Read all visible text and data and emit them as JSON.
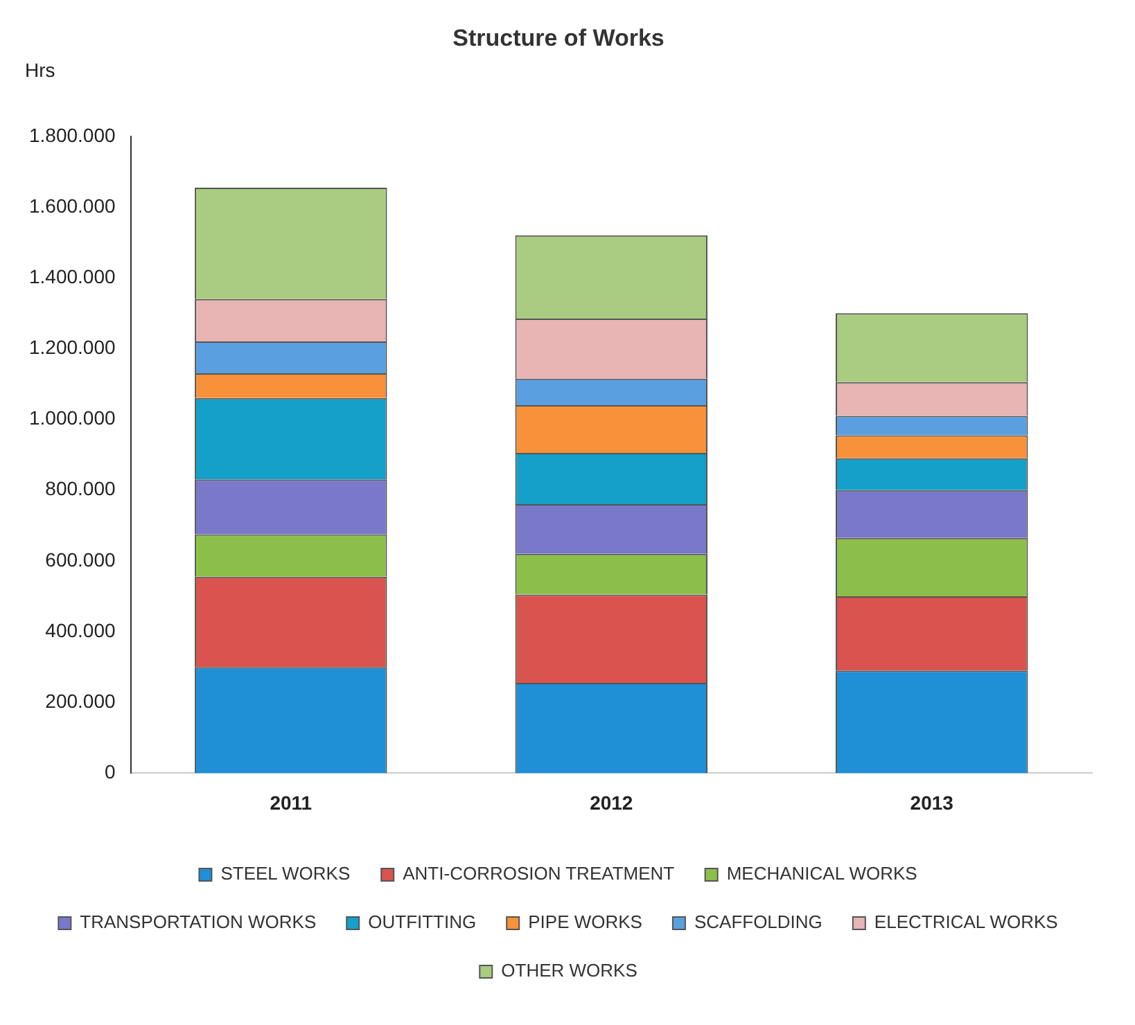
{
  "chart_data": {
    "type": "bar",
    "title": "Structure of Works",
    "ylabel": "Hrs",
    "categories": [
      "2011",
      "2012",
      "2013"
    ],
    "stacked": true,
    "legend": "bottom",
    "grid": false,
    "ylim": [
      0,
      1800000
    ],
    "yticks": [
      0,
      {
        "value": 200000,
        "label": "200.000"
      },
      {
        "value": 400000,
        "label": "400.000"
      },
      {
        "value": 600000,
        "label": "600.000"
      },
      {
        "value": 800000,
        "label": "800.000"
      },
      {
        "value": 1000000,
        "label": "1.000.000"
      },
      {
        "value": 1200000,
        "label": "1.200.000"
      },
      {
        "value": 1400000,
        "label": "1.400.000"
      },
      {
        "value": 1600000,
        "label": "1.600.000"
      },
      {
        "value": 1800000,
        "label": "1.800.000"
      }
    ],
    "series": [
      {
        "name": "STEEL WORKS",
        "color": "#1f8fd6",
        "values": [
          300000,
          255000,
          290000
        ]
      },
      {
        "name": "ANTI-CORROSION TREATMENT",
        "color": "#d9534f",
        "values": [
          255000,
          250000,
          210000
        ]
      },
      {
        "name": "MECHANICAL WORKS",
        "color": "#8cbf4a",
        "values": [
          120000,
          115000,
          165000
        ]
      },
      {
        "name": "TRANSPORTATION WORKS",
        "color": "#7a78c8",
        "values": [
          155000,
          140000,
          135000
        ]
      },
      {
        "name": "OUTFITTING",
        "color": "#14a0c8",
        "values": [
          230000,
          145000,
          90000
        ]
      },
      {
        "name": "PIPE WORKS",
        "color": "#f7913a",
        "values": [
          70000,
          135000,
          65000
        ]
      },
      {
        "name": "SCAFFOLDING",
        "color": "#5aa0e0",
        "values": [
          90000,
          75000,
          55000
        ]
      },
      {
        "name": "ELECTRICAL WORKS",
        "color": "#e8b4b4",
        "values": [
          120000,
          170000,
          95000
        ]
      },
      {
        "name": "OTHER WORKS",
        "color": "#a9cc80",
        "values": [
          315000,
          235000,
          195000
        ]
      }
    ]
  }
}
